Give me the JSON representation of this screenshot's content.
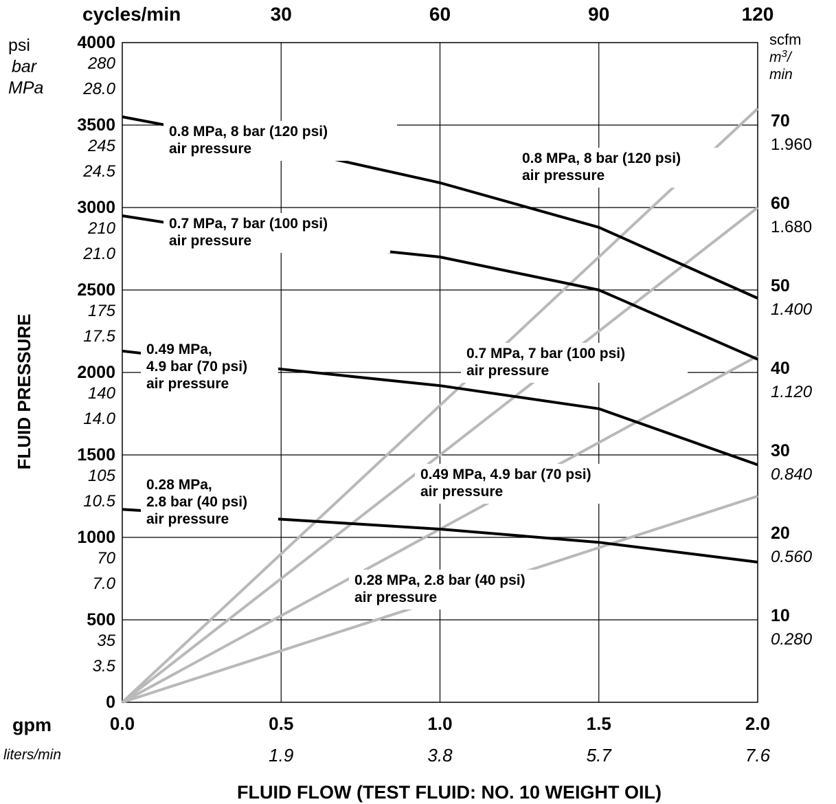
{
  "chart_data": {
    "type": "line",
    "xlabel": "FLUID FLOW (TEST FLUID: NO. 10 WEIGHT OIL)",
    "ylabel": "FLUID PRESSURE",
    "xlim": [
      0,
      2.0
    ],
    "ylim": [
      0,
      4000
    ],
    "grid": true,
    "x_axis": {
      "gpm_label": "gpm",
      "gpm_ticks": [
        "0.0",
        "0.5",
        "1.0",
        "1.5",
        "2.0"
      ],
      "lpm_label": "liters/min",
      "lpm_ticks": [
        "1.9",
        "3.8",
        "5.7",
        "7.6"
      ]
    },
    "top_axis": {
      "label": "cycles/min",
      "ticks": [
        "30",
        "60",
        "90",
        "120"
      ]
    },
    "left_axis": {
      "unit_labels": [
        "psi",
        "bar",
        "MPa"
      ],
      "psi_ticks": [
        "4000",
        "3500",
        "3000",
        "2500",
        "2000",
        "1500",
        "1000",
        "500",
        "0"
      ],
      "bar_ticks": [
        "280",
        "245",
        "210",
        "175",
        "140",
        "105",
        "70",
        "35"
      ],
      "mpa_ticks": [
        "28.0",
        "24.5",
        "21.0",
        "17.5",
        "14.0",
        "10.5",
        "7.0",
        "3.5"
      ]
    },
    "right_axis": {
      "unit_scfm": "scfm",
      "unit_m3": "m",
      "unit_m3_sup": "3",
      "unit_m3_tail": "/",
      "unit_min": "min",
      "scfm_ticks": [
        "70",
        "60",
        "50",
        "40",
        "30",
        "20",
        "10"
      ],
      "m3_ticks": [
        "1.960",
        "1.680",
        "1.400",
        "1.120",
        "0.840",
        "0.560",
        "0.280"
      ]
    },
    "fluid_series": [
      {
        "label_lines": [
          "0.8 MPa, 8 bar (120 psi)",
          "air pressure"
        ],
        "x": [
          0,
          0.3,
          0.65,
          1.0,
          1.5,
          2.0
        ],
        "y": [
          3550,
          3440,
          3300,
          3150,
          2880,
          2450
        ]
      },
      {
        "label_lines": [
          "0.7 MPa, 7 bar (100 psi)",
          "air pressure"
        ],
        "x": [
          0,
          0.3,
          0.7,
          1.0,
          1.5,
          2.0
        ],
        "y": [
          2950,
          2860,
          2760,
          2700,
          2500,
          2080
        ]
      },
      {
        "label_lines": [
          "0.49 MPa,",
          "4.9 bar (70 psi)",
          "air pressure"
        ],
        "x": [
          0,
          0.5,
          1.0,
          1.5,
          2.0
        ],
        "y": [
          2130,
          2020,
          1920,
          1780,
          1440
        ]
      },
      {
        "label_lines": [
          "0.28 MPa,",
          "2.8 bar (40 psi)",
          "air pressure"
        ],
        "x": [
          0,
          0.5,
          1.0,
          1.5,
          2.0
        ],
        "y": [
          1170,
          1110,
          1050,
          970,
          850
        ]
      }
    ],
    "air_series": [
      {
        "label_lines": [
          "0.8 MPa, 8 bar (120 psi)",
          "air pressure"
        ],
        "x": [
          0,
          2.0
        ],
        "scfm": [
          0,
          72
        ]
      },
      {
        "label_lines": [
          "0.7 MPa, 7 bar (100 psi)",
          "air pressure"
        ],
        "x": [
          0,
          2.0
        ],
        "scfm": [
          0,
          60
        ]
      },
      {
        "label_lines": [
          "0.49 MPa, 4.9 bar (70 psi)",
          "air pressure"
        ],
        "x": [
          0,
          2.0
        ],
        "scfm": [
          0,
          42
        ]
      },
      {
        "label_lines": [
          "0.28 MPa, 2.8 bar (40 psi)",
          "air pressure"
        ],
        "x": [
          0,
          2.0
        ],
        "scfm": [
          0,
          25
        ]
      }
    ]
  }
}
